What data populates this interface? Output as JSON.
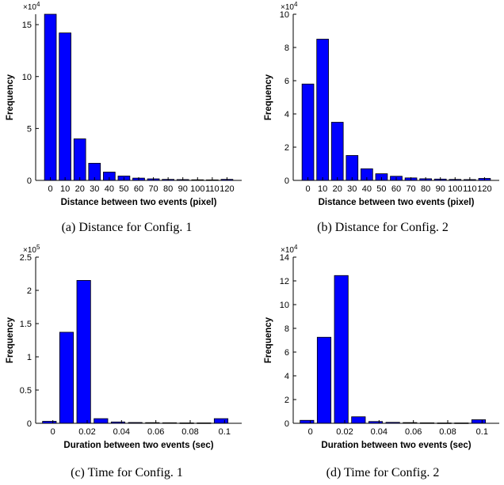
{
  "chart_data": [
    {
      "type": "bar",
      "caption": "(a) Distance for Config. 1",
      "xlabel": "Distance between two events (pixel)",
      "ylabel": "Frequency",
      "exponent_base": "×10",
      "exponent_power": "4",
      "bar_color": "#0000ff",
      "ylim": [
        0,
        16
      ],
      "yticks": [
        0,
        5,
        10,
        15
      ],
      "categories": [
        "0",
        "10",
        "20",
        "30",
        "40",
        "50",
        "60",
        "70",
        "80",
        "90",
        "100",
        "110",
        "120"
      ],
      "values": [
        16.0,
        14.2,
        4.0,
        1.65,
        0.8,
        0.42,
        0.22,
        0.15,
        0.1,
        0.08,
        0.06,
        0.05,
        0.1
      ]
    },
    {
      "type": "bar",
      "caption": "(b) Distance for Config. 2",
      "xlabel": "Distance between two events (pixel)",
      "ylabel": "Frequency",
      "exponent_base": "×10",
      "exponent_power": "4",
      "bar_color": "#0000ff",
      "ylim": [
        0,
        10
      ],
      "yticks": [
        0,
        2,
        4,
        6,
        8,
        10
      ],
      "categories": [
        "0",
        "10",
        "20",
        "30",
        "40",
        "50",
        "60",
        "70",
        "80",
        "90",
        "100",
        "110",
        "120"
      ],
      "values": [
        5.8,
        8.5,
        3.5,
        1.5,
        0.7,
        0.4,
        0.25,
        0.15,
        0.1,
        0.08,
        0.06,
        0.05,
        0.12
      ]
    },
    {
      "type": "bar",
      "caption": "(c) Time for Config. 1",
      "xlabel": "Duration between two events (sec)",
      "ylabel": "Frequency",
      "exponent_base": "×10",
      "exponent_power": "5",
      "bar_color": "#0000ff",
      "ylim": [
        0,
        2.5
      ],
      "yticks": [
        0,
        0.5,
        1,
        1.5,
        2,
        2.5
      ],
      "xtick_labels": [
        "0",
        "0.02",
        "0.04",
        "0.06",
        "0.08",
        "0.1"
      ],
      "xtick_values": [
        0,
        0.02,
        0.04,
        0.06,
        0.08,
        0.1
      ],
      "xlim": [
        -0.01,
        0.11
      ],
      "x": [
        -0.002,
        0.008,
        0.018,
        0.028,
        0.038,
        0.048,
        0.058,
        0.068,
        0.078,
        0.088,
        0.098
      ],
      "values": [
        0.03,
        1.37,
        2.15,
        0.07,
        0.02,
        0.012,
        0.01,
        0.008,
        0.006,
        0.006,
        0.07
      ]
    },
    {
      "type": "bar",
      "caption": "(d) Time for Config. 2",
      "xlabel": "Duration between two events (sec)",
      "ylabel": "Frequency",
      "exponent_base": "×10",
      "exponent_power": "4",
      "bar_color": "#0000ff",
      "ylim": [
        0,
        14
      ],
      "yticks": [
        0,
        2,
        4,
        6,
        8,
        10,
        12,
        14
      ],
      "xtick_labels": [
        "0",
        "0.02",
        "0.04",
        "0.06",
        "0.08",
        "0.1"
      ],
      "xtick_values": [
        0,
        0.02,
        0.04,
        0.06,
        0.08,
        0.1
      ],
      "xlim": [
        -0.01,
        0.11
      ],
      "x": [
        -0.002,
        0.008,
        0.018,
        0.028,
        0.038,
        0.048,
        0.058,
        0.068,
        0.078,
        0.088,
        0.098
      ],
      "values": [
        0.25,
        7.25,
        12.45,
        0.55,
        0.15,
        0.08,
        0.06,
        0.04,
        0.03,
        0.03,
        0.3
      ]
    }
  ]
}
